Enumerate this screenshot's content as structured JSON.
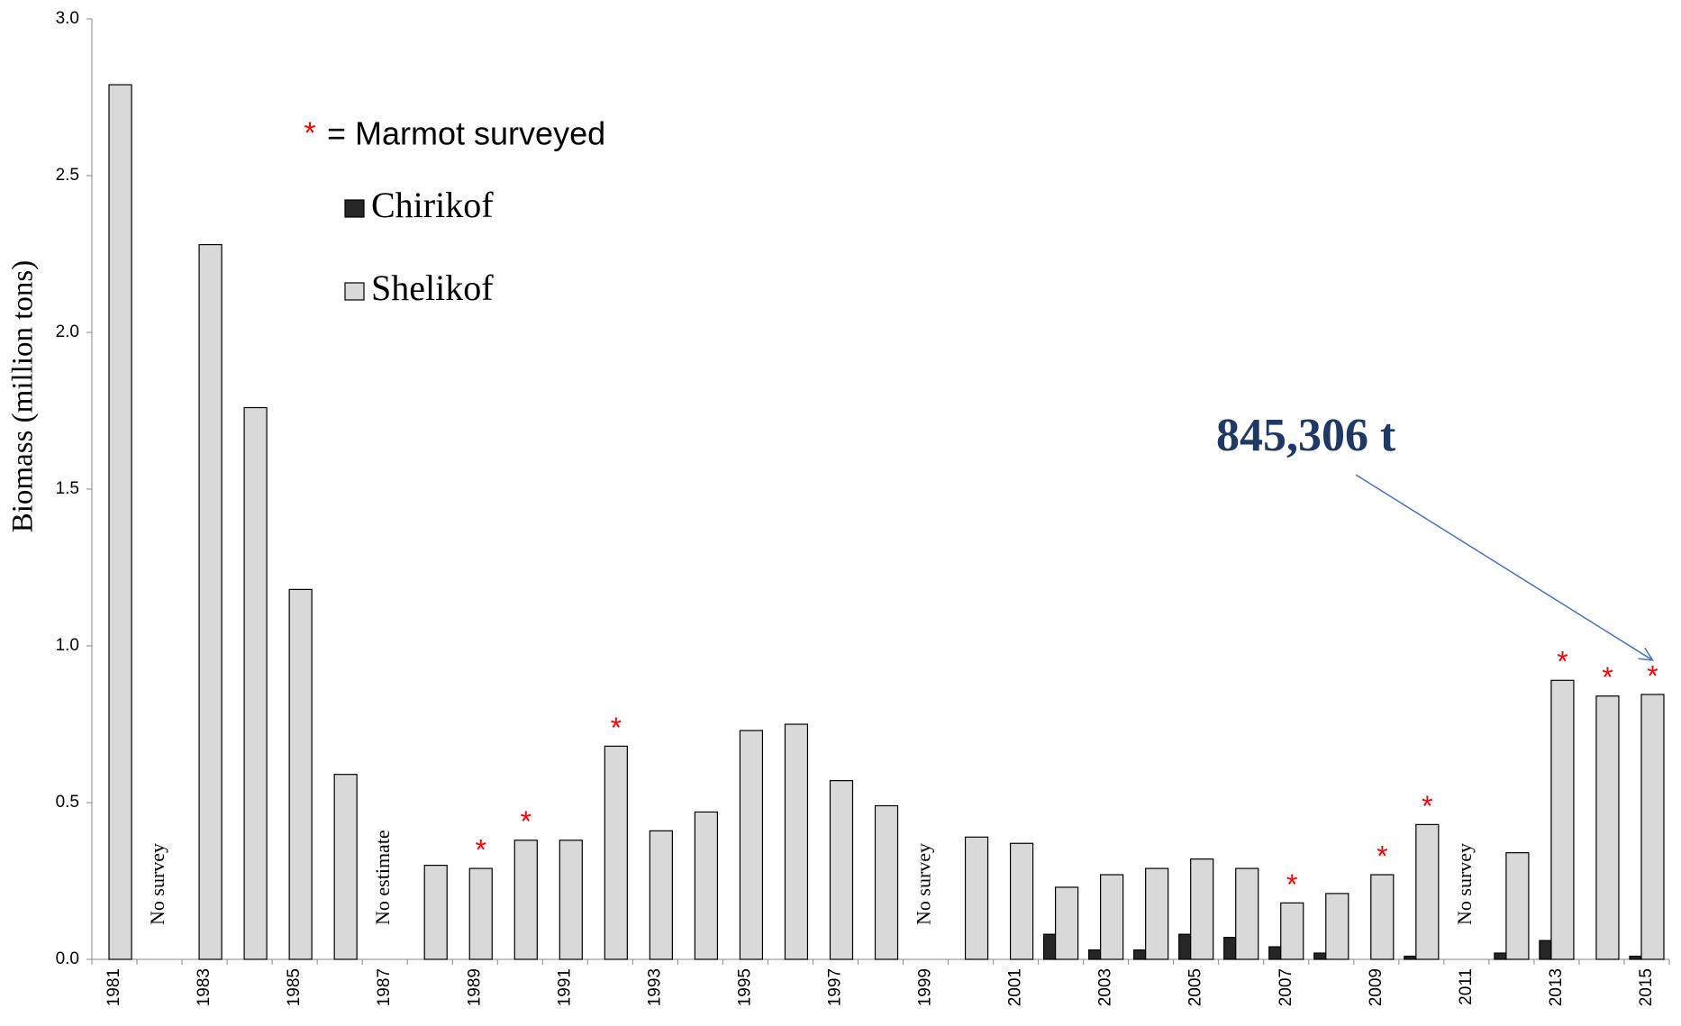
{
  "chart_data": {
    "type": "bar",
    "y_label": "Biomass (million tons)",
    "categories": [
      "1981",
      null,
      "1983",
      null,
      "1985",
      null,
      "1987",
      null,
      "1989",
      null,
      "1991",
      null,
      "1993",
      null,
      "1995",
      null,
      "1997",
      null,
      "1999",
      null,
      "2001",
      null,
      "2003",
      null,
      "2005",
      null,
      "2007",
      null,
      "2009",
      null,
      "2011",
      null,
      "2013",
      null,
      "2015"
    ],
    "series": [
      {
        "name": "Chirikof",
        "color": "#262626",
        "values": [
          null,
          null,
          null,
          null,
          null,
          null,
          null,
          null,
          null,
          null,
          null,
          null,
          null,
          null,
          null,
          null,
          null,
          null,
          null,
          null,
          null,
          0.08,
          0.03,
          0.03,
          0.08,
          0.07,
          0.04,
          0.02,
          0.0,
          0.01,
          null,
          0.02,
          0.06,
          0.0,
          0.01
        ]
      },
      {
        "name": "Shelikof",
        "color": "#d9d9d9",
        "values": [
          2.79,
          null,
          2.28,
          1.76,
          1.18,
          0.59,
          null,
          0.3,
          0.29,
          0.38,
          0.38,
          0.68,
          0.41,
          0.47,
          0.73,
          0.75,
          0.57,
          0.49,
          null,
          0.39,
          0.37,
          0.23,
          0.27,
          0.29,
          0.32,
          0.29,
          0.18,
          0.21,
          0.27,
          0.43,
          null,
          0.34,
          0.89,
          0.84,
          0.845
        ]
      }
    ],
    "category_notes": [
      null,
      "No survey",
      null,
      null,
      null,
      null,
      "No estimate",
      null,
      null,
      null,
      null,
      null,
      null,
      null,
      null,
      null,
      null,
      null,
      "No survey",
      null,
      null,
      null,
      null,
      null,
      null,
      null,
      null,
      null,
      null,
      null,
      "No survey",
      null,
      null,
      null,
      null
    ],
    "marmot": {
      "marker": "*",
      "label": "= Marmot surveyed",
      "color": "#ff0000",
      "surveyed": [
        false,
        false,
        false,
        false,
        false,
        false,
        false,
        false,
        true,
        true,
        false,
        true,
        false,
        false,
        false,
        false,
        false,
        false,
        false,
        false,
        false,
        false,
        false,
        false,
        false,
        false,
        true,
        false,
        true,
        true,
        false,
        false,
        true,
        true,
        true
      ]
    },
    "callout": {
      "text": "845,306 t",
      "color": "#1f3864",
      "arrow_color": "#4472c4"
    },
    "ylim": [
      0,
      3.0
    ],
    "yticks": [
      {
        "value": 0,
        "label": "0.0"
      },
      0.5,
      {
        "value": 1,
        "label": "1.0"
      },
      1.5,
      {
        "value": 2,
        "label": "2.0"
      },
      2.5,
      {
        "value": 3,
        "label": "3.0"
      }
    ],
    "grid": false
  }
}
